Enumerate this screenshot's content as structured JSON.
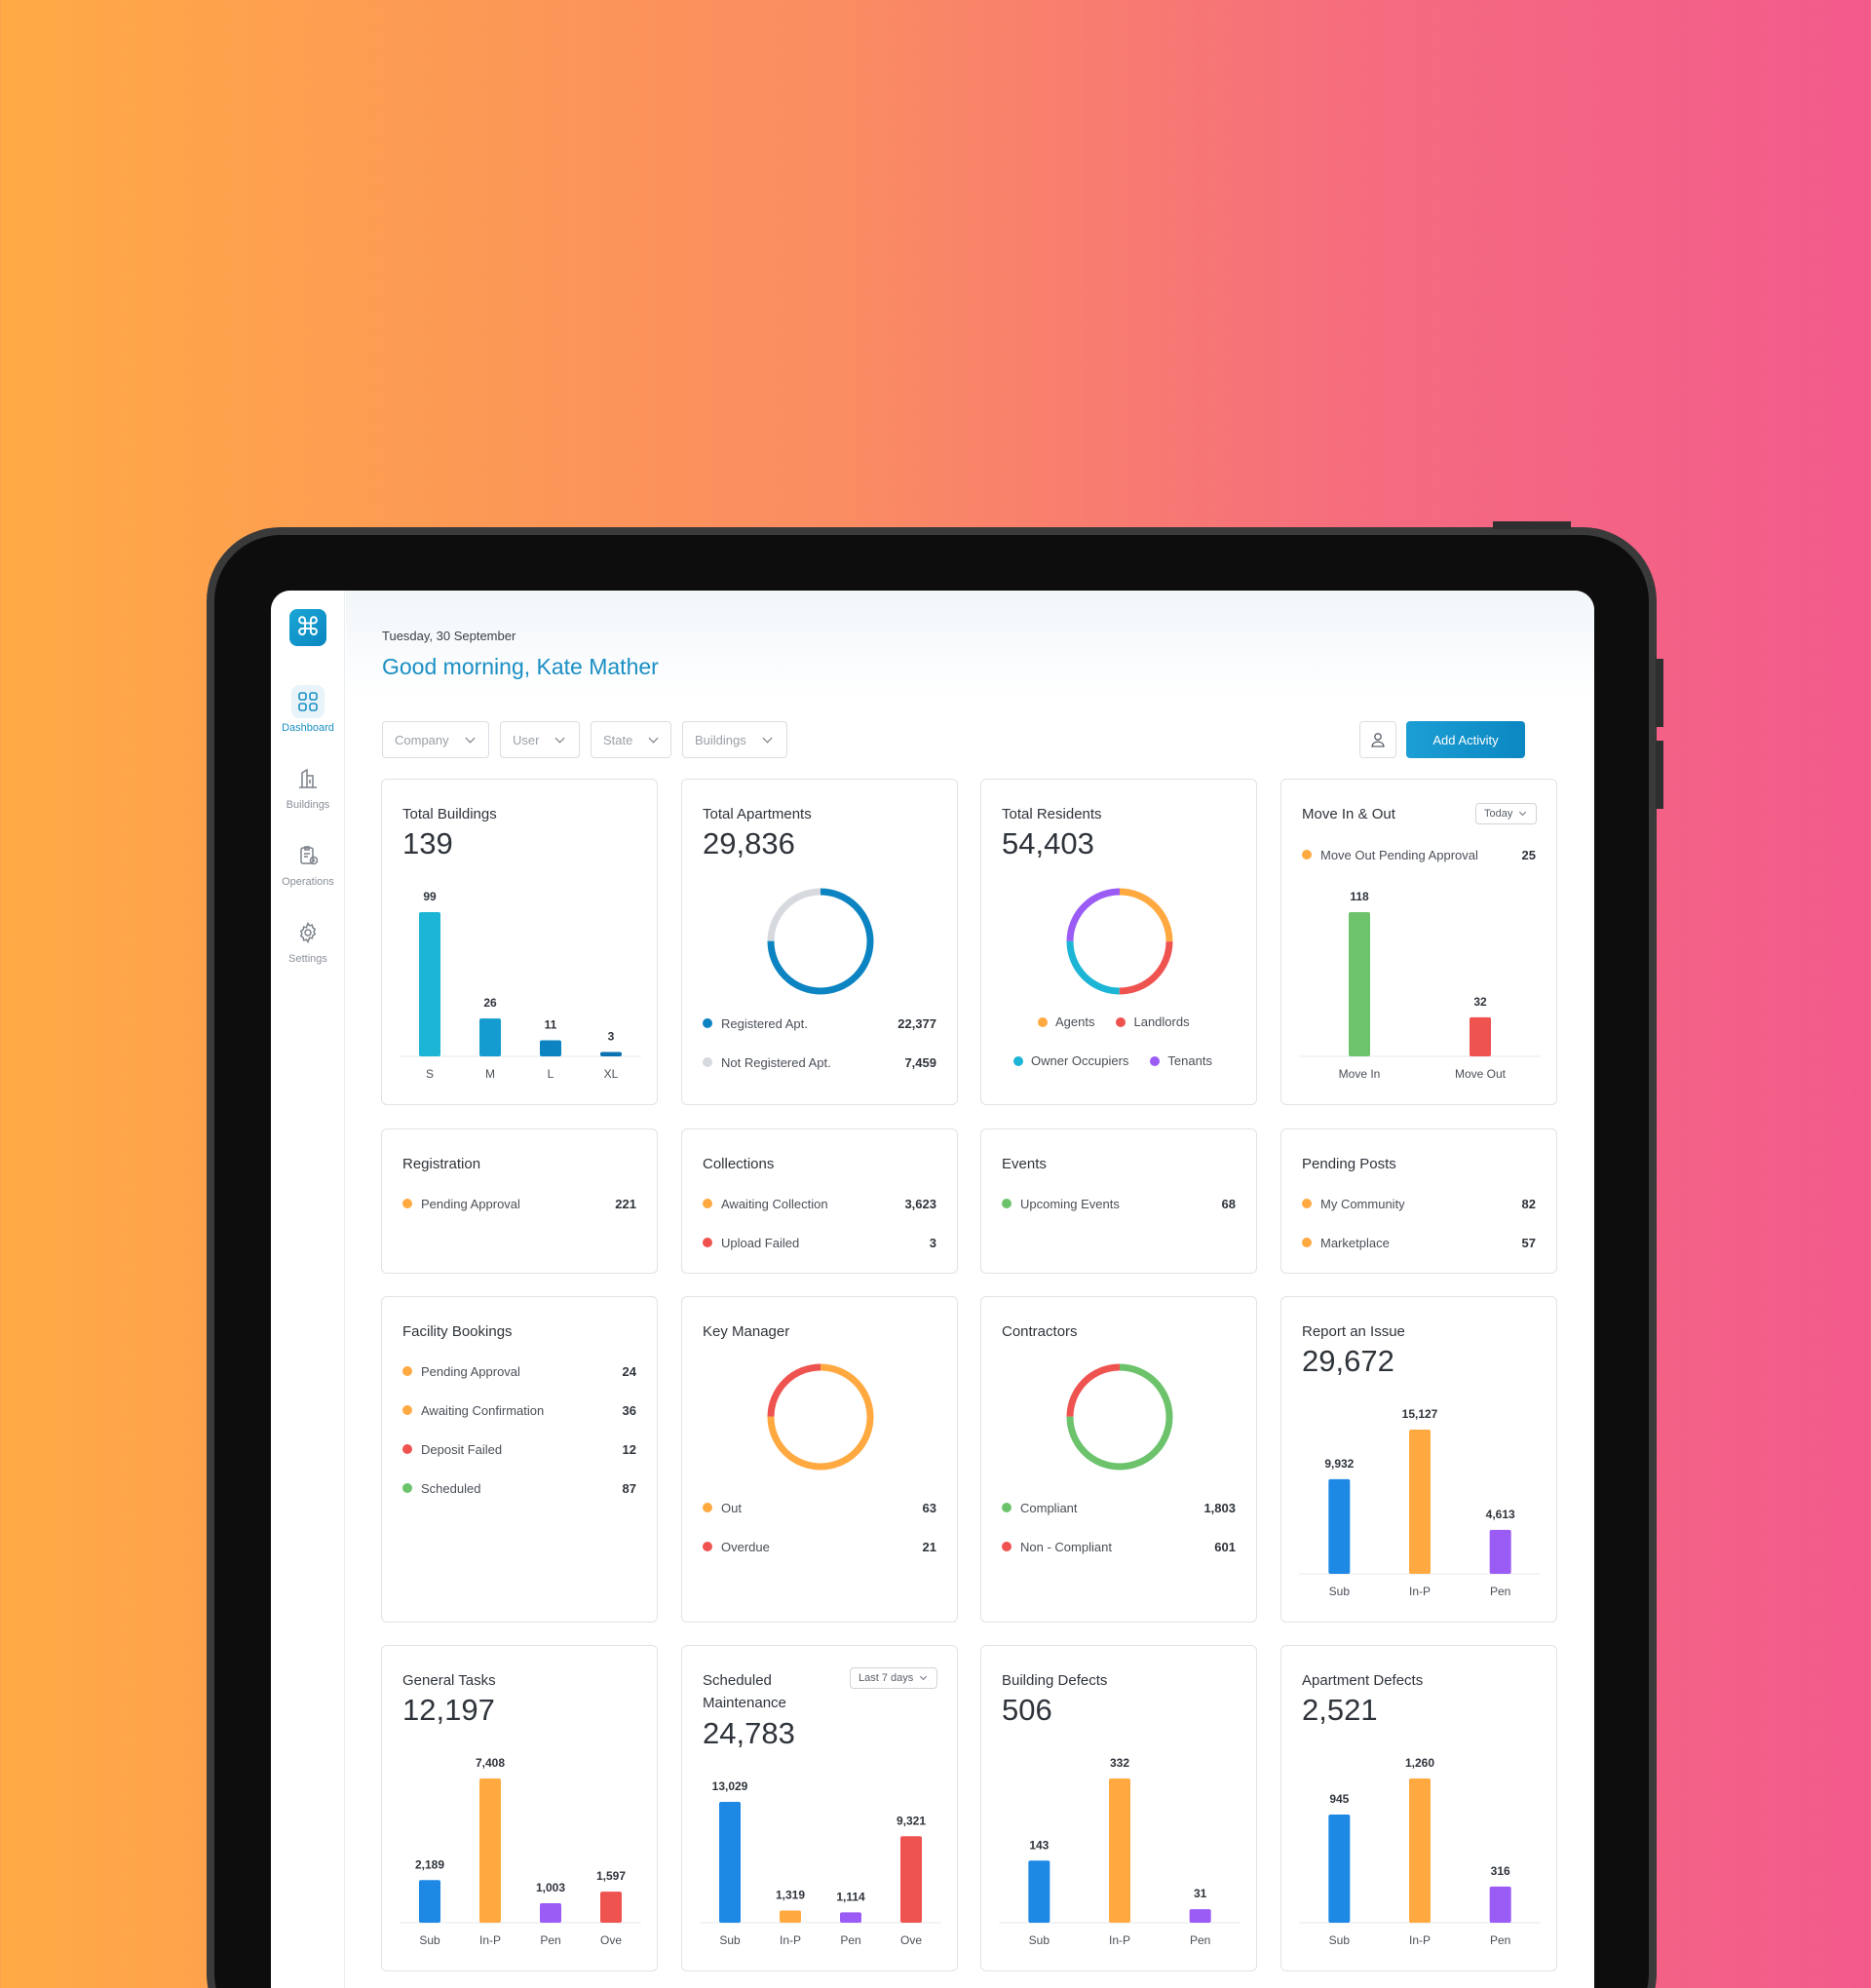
{
  "header": {
    "date": "Tuesday, 30 September",
    "greeting": "Good morning, Kate Mather"
  },
  "sidebar": {
    "items": [
      {
        "label": "Dashboard",
        "icon": "dashboard-icon",
        "active": true
      },
      {
        "label": "Buildings",
        "icon": "buildings-icon"
      },
      {
        "label": "Operations",
        "icon": "operations-icon"
      },
      {
        "label": "Settings",
        "icon": "gear-icon"
      }
    ]
  },
  "filters": [
    "Company",
    "User",
    "State",
    "Buildings"
  ],
  "actions": {
    "add_label": "Add Activity"
  },
  "colors": {
    "accent": "#1A8FC4",
    "blue": "#1E88E5",
    "orange": "#FFA940",
    "purple": "#9B5CF6",
    "red": "#EF5350",
    "green": "#6CC36C",
    "cyan": "#1CB5D6",
    "grey": "#D6D9DE"
  },
  "cards": {
    "total_buildings": {
      "title": "Total Buildings",
      "total": "139"
    },
    "total_apartments": {
      "title": "Total Apartments",
      "total": "29,836",
      "legend": [
        {
          "label": "Registered Apt.",
          "value": "22,377"
        },
        {
          "label": "Not Registered Apt.",
          "value": "7,459"
        }
      ]
    },
    "total_residents": {
      "title": "Total Residents",
      "total": "54,403",
      "legend": [
        "Agents",
        "Landlords",
        "Owner Occupiers",
        "Tenants"
      ]
    },
    "move": {
      "title": "Move In & Out",
      "period": "Today",
      "legend": {
        "label": "Move Out Pending Approval",
        "value": "25"
      }
    },
    "registration": {
      "title": "Registration",
      "rows": [
        {
          "label": "Pending Approval",
          "value": "221"
        }
      ]
    },
    "collections": {
      "title": "Collections",
      "rows": [
        {
          "label": "Awaiting Collection",
          "value": "3,623"
        },
        {
          "label": "Upload Failed",
          "value": "3"
        }
      ]
    },
    "events": {
      "title": "Events",
      "rows": [
        {
          "label": "Upcoming Events",
          "value": "68"
        }
      ]
    },
    "pending_posts": {
      "title": "Pending Posts",
      "rows": [
        {
          "label": "My Community",
          "value": "82"
        },
        {
          "label": "Marketplace",
          "value": "57"
        }
      ]
    },
    "facility": {
      "title": "Facility Bookings",
      "rows": [
        {
          "label": "Pending Approval",
          "value": "24"
        },
        {
          "label": "Awaiting Confirmation",
          "value": "36"
        },
        {
          "label": "Deposit Failed",
          "value": "12"
        },
        {
          "label": "Scheduled",
          "value": "87"
        }
      ]
    },
    "key_manager": {
      "title": "Key Manager",
      "rows": [
        {
          "label": "Out",
          "value": "63"
        },
        {
          "label": "Overdue",
          "value": "21"
        }
      ]
    },
    "contractors": {
      "title": "Contractors",
      "rows": [
        {
          "label": "Compliant",
          "value": "1,803"
        },
        {
          "label": "Non - Compliant",
          "value": "601"
        }
      ]
    },
    "report_issue": {
      "title": "Report an Issue",
      "total": "29,672"
    },
    "general_tasks": {
      "title": "General Tasks",
      "total": "12,197"
    },
    "scheduled_maint": {
      "title": "Scheduled Maintenance",
      "total": "24,783",
      "period": "Last 7 days"
    },
    "building_defects": {
      "title": "Building Defects",
      "total": "506"
    },
    "apartment_defects": {
      "title": "Apartment Defects",
      "total": "2,521"
    }
  },
  "chart_data": [
    {
      "id": "total_buildings",
      "type": "bar",
      "categories": [
        "S",
        "M",
        "L",
        "XL"
      ],
      "values": [
        99,
        26,
        11,
        3
      ],
      "colors": [
        "#1CB5D6",
        "#149BCF",
        "#0C84C1",
        "#0A72B0"
      ]
    },
    {
      "id": "total_apartments",
      "type": "pie",
      "labels": [
        "Registered Apt.",
        "Not Registered Apt."
      ],
      "values": [
        22377,
        7459
      ],
      "colors": [
        "#0C84C1",
        "#D6D9DE"
      ]
    },
    {
      "id": "total_residents",
      "type": "pie",
      "labels": [
        "Agents",
        "Landlords",
        "Owner Occupiers",
        "Tenants"
      ],
      "values": [
        25,
        25,
        25,
        25
      ],
      "colors": [
        "#FFA940",
        "#EF5350",
        "#1CB5D6",
        "#9B5CF6"
      ]
    },
    {
      "id": "move",
      "type": "bar",
      "categories": [
        "Move In",
        "Move Out"
      ],
      "values": [
        118,
        32
      ],
      "colors": [
        "#6CC36C",
        "#EF5350"
      ]
    },
    {
      "id": "key_manager",
      "type": "pie",
      "labels": [
        "Out",
        "Overdue"
      ],
      "values": [
        63,
        21
      ],
      "colors": [
        "#FFA940",
        "#EF5350"
      ]
    },
    {
      "id": "contractors",
      "type": "pie",
      "labels": [
        "Compliant",
        "Non - Compliant"
      ],
      "values": [
        1803,
        601
      ],
      "colors": [
        "#6CC36C",
        "#EF5350"
      ]
    },
    {
      "id": "report_issue",
      "type": "bar",
      "categories": [
        "Sub",
        "In-P",
        "Pen"
      ],
      "values": [
        9932,
        15127,
        4613
      ],
      "colors": [
        "#1E88E5",
        "#FFA940",
        "#9B5CF6"
      ]
    },
    {
      "id": "general_tasks",
      "type": "bar",
      "categories": [
        "Sub",
        "In-P",
        "Pen",
        "Ove"
      ],
      "values": [
        2189,
        7408,
        1003,
        1597
      ],
      "colors": [
        "#1E88E5",
        "#FFA940",
        "#9B5CF6",
        "#EF5350"
      ]
    },
    {
      "id": "scheduled_maint",
      "type": "bar",
      "categories": [
        "Sub",
        "In-P",
        "Pen",
        "Ove"
      ],
      "values": [
        13029,
        1319,
        1114,
        9321
      ],
      "colors": [
        "#1E88E5",
        "#FFA940",
        "#9B5CF6",
        "#EF5350"
      ]
    },
    {
      "id": "building_defects",
      "type": "bar",
      "categories": [
        "Sub",
        "In-P",
        "Pen"
      ],
      "values": [
        143,
        332,
        31
      ],
      "colors": [
        "#1E88E5",
        "#FFA940",
        "#9B5CF6"
      ]
    },
    {
      "id": "apartment_defects",
      "type": "bar",
      "categories": [
        "Sub",
        "In-P",
        "Pen"
      ],
      "values": [
        945,
        1260,
        316
      ],
      "colors": [
        "#1E88E5",
        "#FFA940",
        "#9B5CF6"
      ]
    }
  ]
}
